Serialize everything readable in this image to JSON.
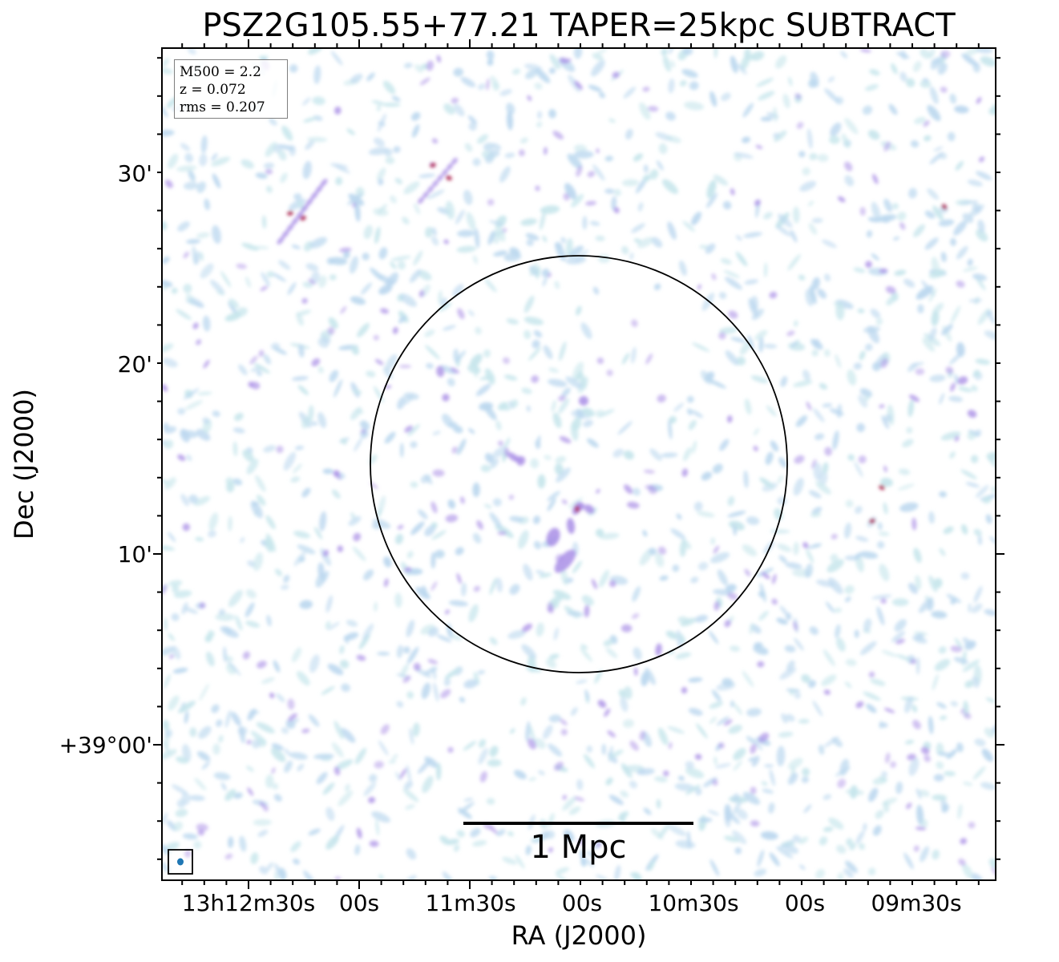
{
  "chart_data": {
    "type": "heatmap",
    "title": "PSZ2G105.55+77.21 TAPER=25kpc SUBTRACT",
    "xlabel": "RA (J2000)",
    "ylabel": "Dec (J2000)",
    "x_ticks": [
      "13h12m30s",
      "00s",
      "11m30s",
      "00s",
      "10m30s",
      "00s",
      "09m30s"
    ],
    "y_ticks": [
      "+39°00'",
      "10'",
      "20'",
      "30'"
    ],
    "info": {
      "m500": "M500 = 2.2",
      "z": "z = 0.072",
      "rms": "rms = 0.207"
    },
    "scale_bar_label": "1 Mpc",
    "colors": {
      "noise_light": "#bcd8ef",
      "noise_cyan": "#c7e6ec",
      "emission_mid": "#a98ee6",
      "emission_peak": "#b0305a",
      "circle": "#000000",
      "beam": "#1f77b4"
    }
  }
}
